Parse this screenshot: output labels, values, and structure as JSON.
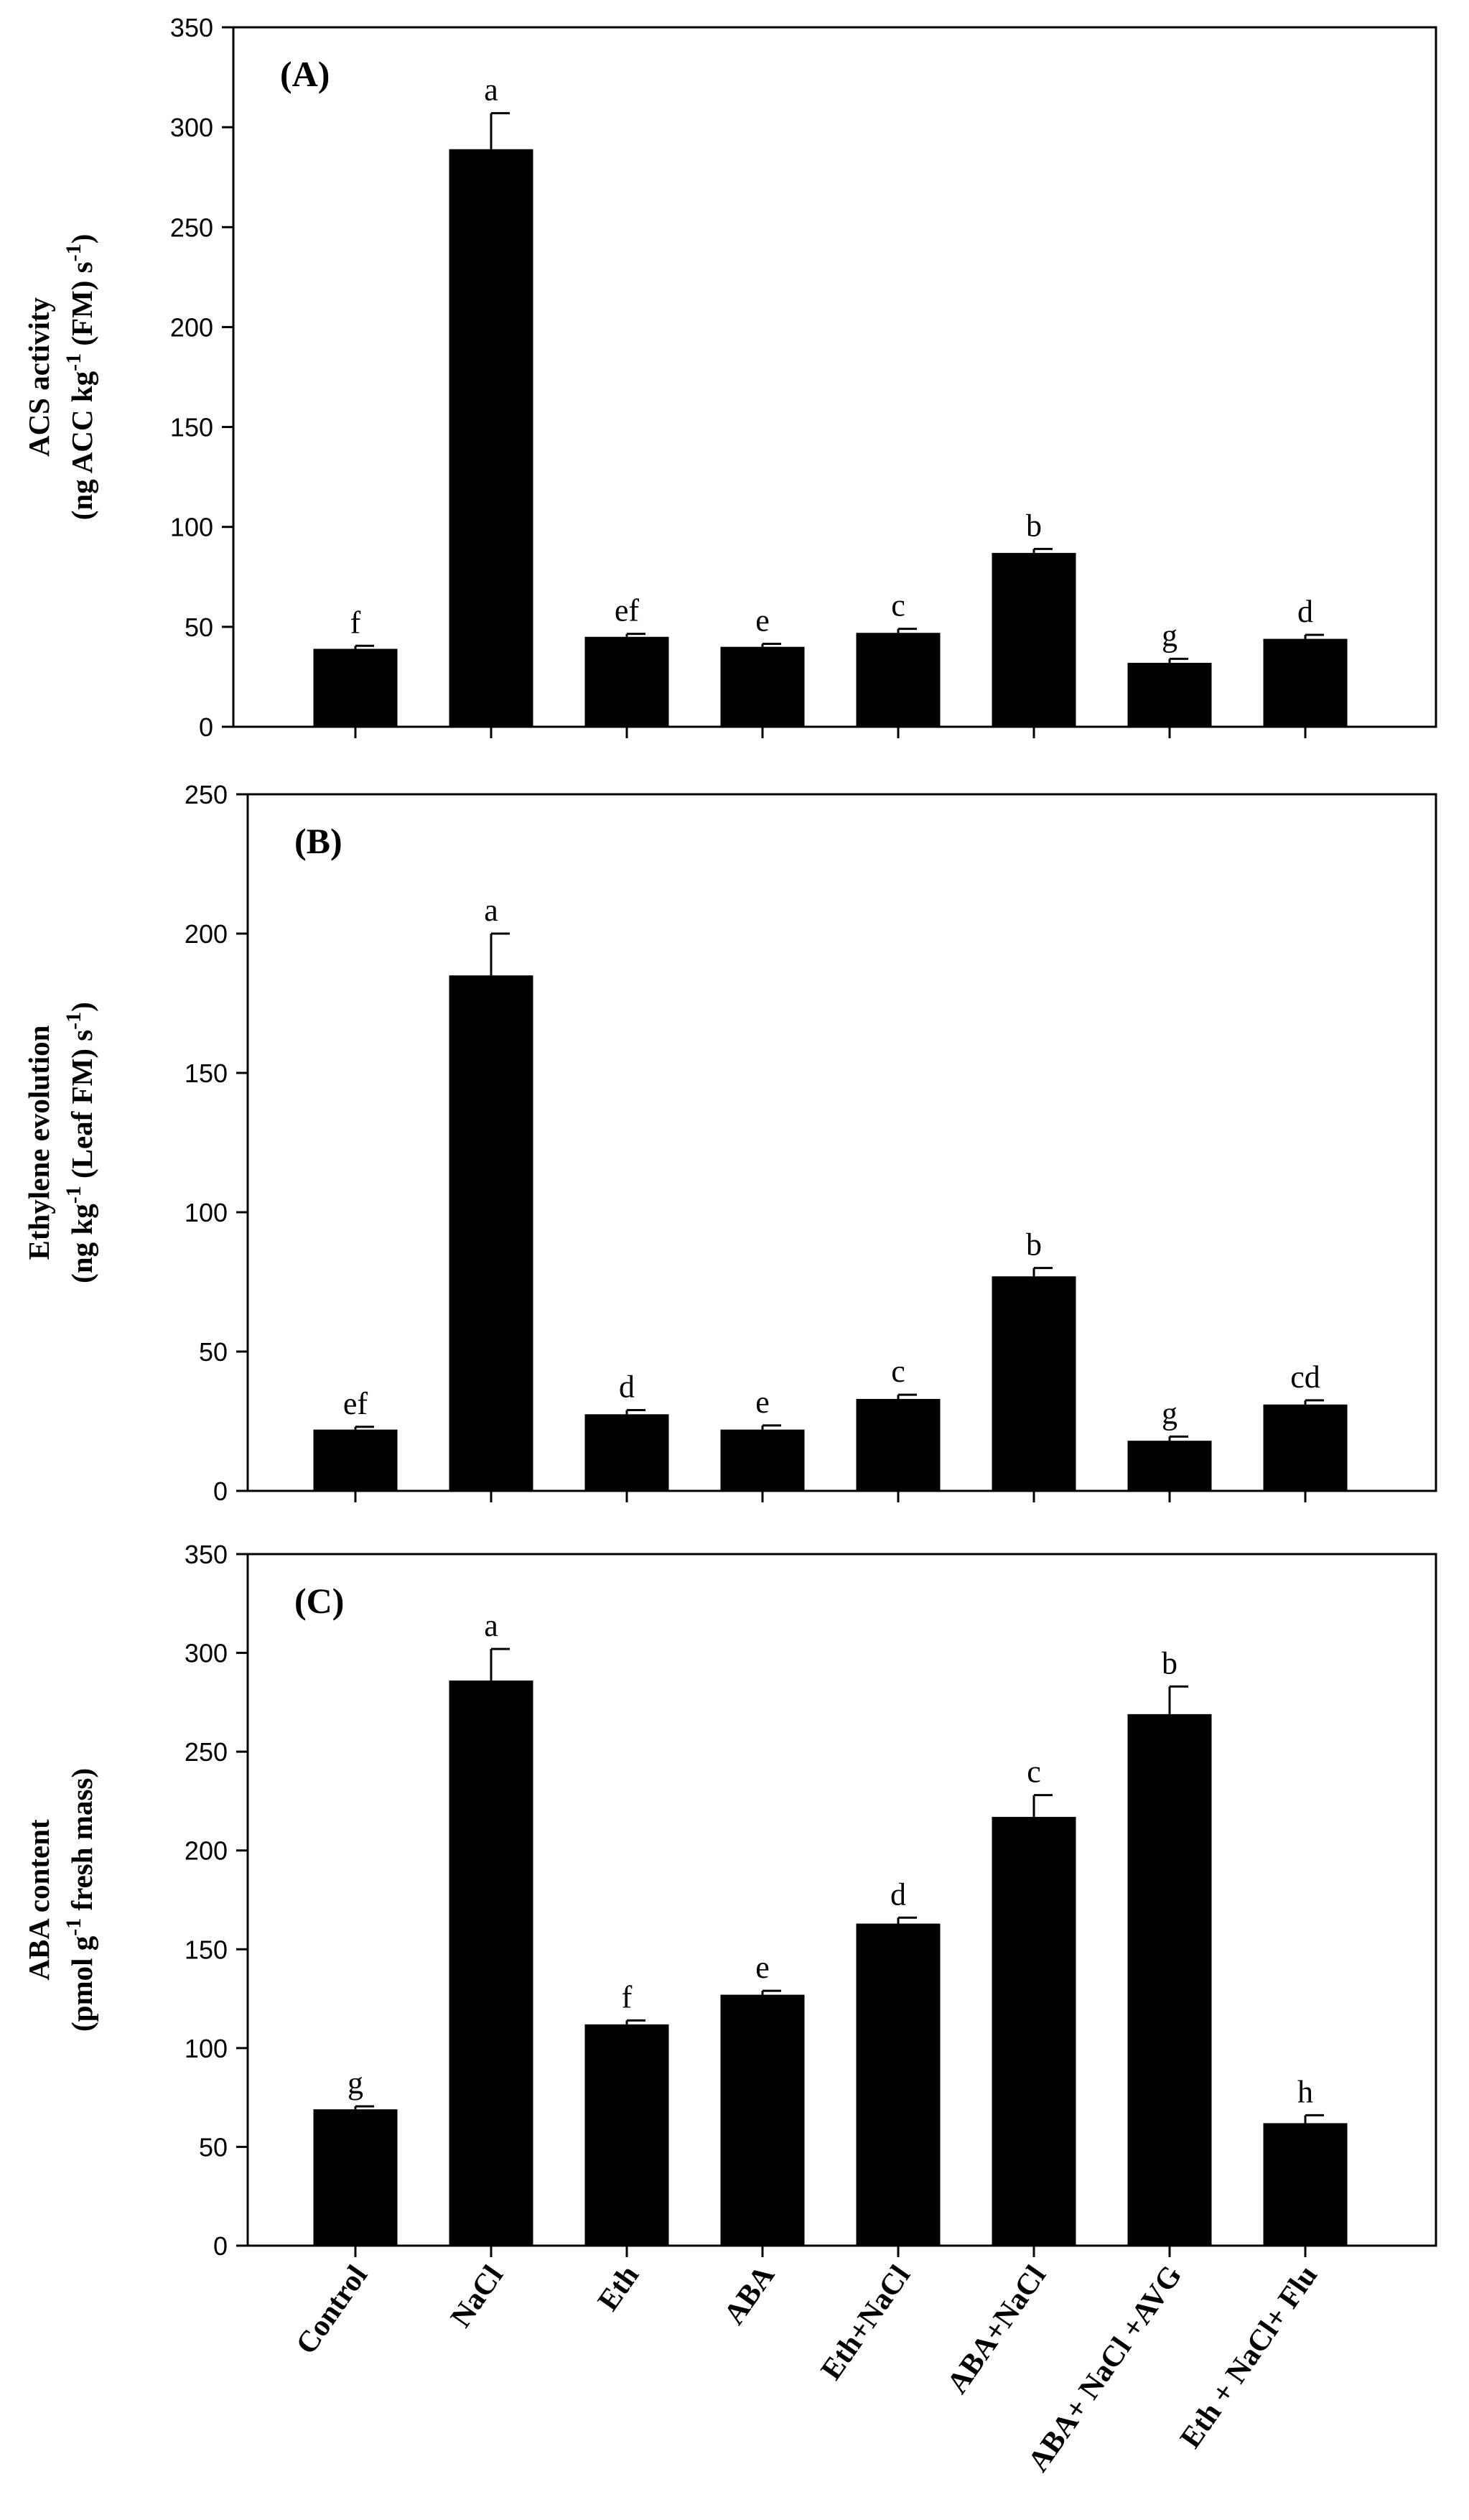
{
  "chart_data": [
    {
      "type": "bar",
      "panel_label": "(A)",
      "categories": [
        "Control",
        "NaCl",
        "Eth",
        "ABA",
        "Eth+NaCl",
        "ABA+NaCl",
        "ABA+ NaCl +AVG",
        "Eth + NaCl+ Flu"
      ],
      "values": [
        39,
        289,
        45,
        40,
        47,
        87,
        32,
        44
      ],
      "errors": [
        1.5,
        18,
        1.5,
        1.5,
        2,
        2,
        2,
        2
      ],
      "significance": [
        "f",
        "a",
        "ef",
        "e",
        "c",
        "b",
        "g",
        "d"
      ],
      "ylabel_line1": "ACS activity",
      "ylabel_line2": "(ng ACC kg^-1 (FM) s^-1)",
      "ylim": [
        0,
        350
      ],
      "yticks": [
        0,
        50,
        100,
        150,
        200,
        250,
        300,
        350
      ],
      "xlabel": ""
    },
    {
      "type": "bar",
      "panel_label": "(B)",
      "categories": [
        "Control",
        "NaCl",
        "Eth",
        "ABA",
        "Eth+NaCl",
        "ABA+NaCl",
        "ABA+ NaCl +AVG",
        "Eth + NaCl+ Flu"
      ],
      "values": [
        22,
        185,
        27.5,
        22,
        33,
        77,
        18,
        31
      ],
      "errors": [
        1,
        15,
        1.5,
        1.5,
        1.5,
        3,
        1.5,
        1.5
      ],
      "significance": [
        "ef",
        "a",
        "d",
        "e",
        "c",
        "b",
        "g",
        "cd"
      ],
      "ylabel_line1": "Ethylene evolution",
      "ylabel_line2": "(ng kg^-1 (Leaf FM) s^-1)",
      "ylim": [
        0,
        250
      ],
      "yticks": [
        0,
        50,
        100,
        150,
        200,
        250
      ],
      "xlabel": ""
    },
    {
      "type": "bar",
      "panel_label": "(C)",
      "categories": [
        "Control",
        "NaCl",
        "Eth",
        "ABA",
        "Eth+NaCl",
        "ABA+NaCl",
        "ABA+ NaCl +AVG",
        "Eth + NaCl+ Flu"
      ],
      "values": [
        69,
        286,
        112,
        127,
        163,
        217,
        269,
        62
      ],
      "errors": [
        1.5,
        16,
        2,
        2,
        3,
        11,
        14,
        4
      ],
      "significance": [
        "g",
        "a",
        "f",
        "e",
        "d",
        "c",
        "b",
        "h"
      ],
      "ylabel_line1": "ABA content",
      "ylabel_line2": "(pmol g^-1 fresh mass)",
      "ylim": [
        0,
        350
      ],
      "yticks": [
        0,
        50,
        100,
        150,
        200,
        250,
        300,
        350
      ],
      "xlabel": ""
    }
  ],
  "colors": {
    "bar": "#000000",
    "axis": "#000000"
  }
}
